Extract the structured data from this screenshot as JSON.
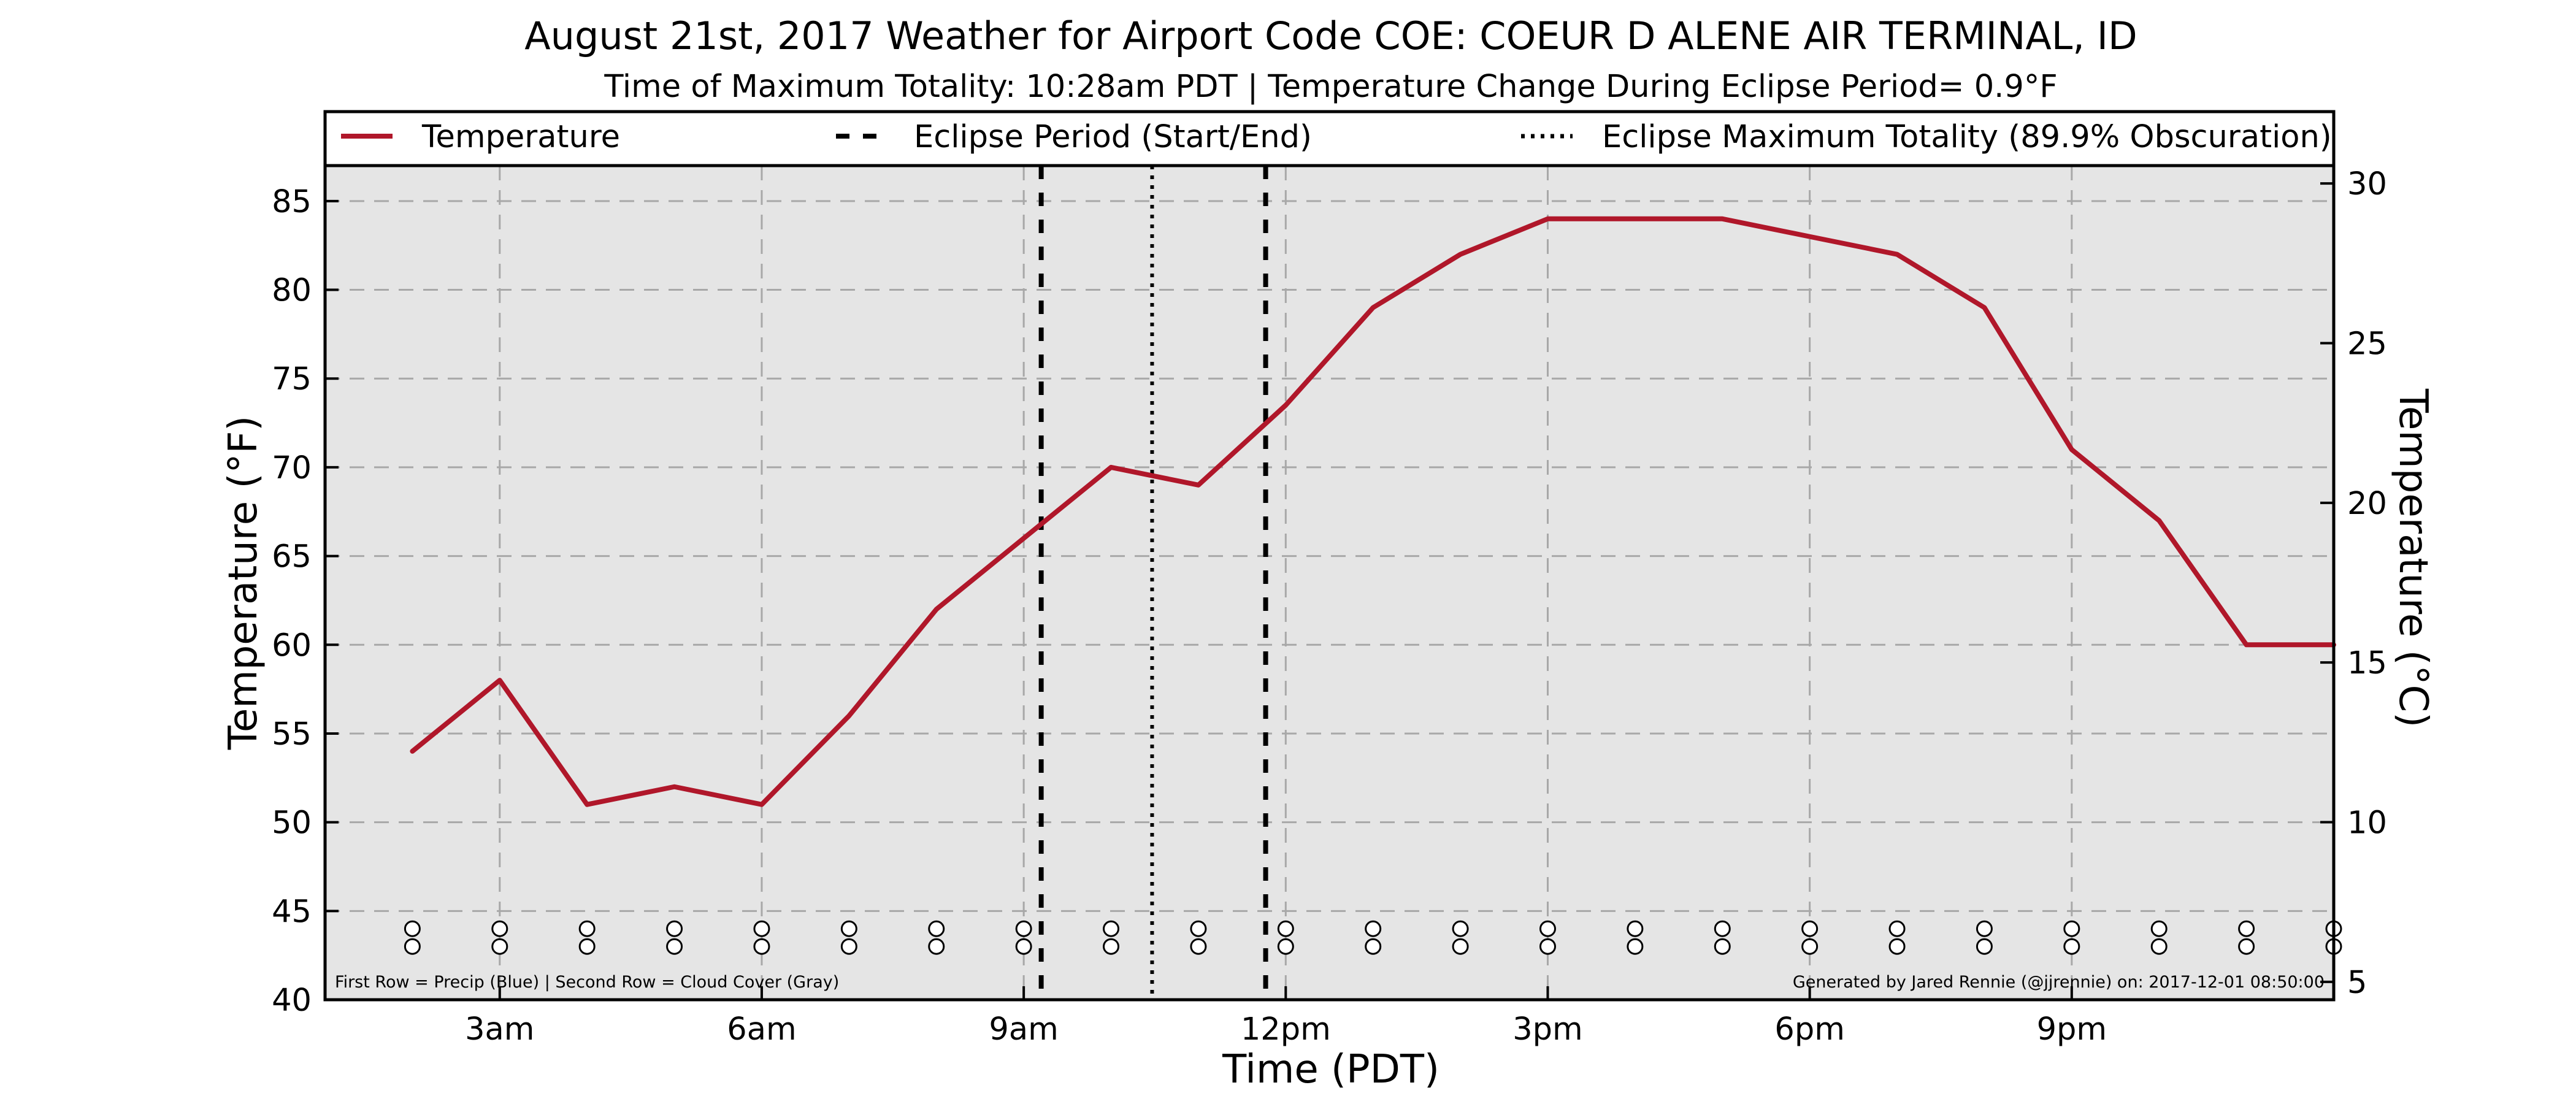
{
  "chart_data": {
    "type": "line",
    "title": "August 21st, 2017 Weather for Airport Code COE: COEUR D ALENE AIR TERMINAL, ID",
    "subtitle": "Time of Maximum Totality: 10:28am PDT | Temperature Change During Eclipse Period= 0.9°F",
    "xlabel": "Time (PDT)",
    "ylabel": "Temperature (°F)",
    "y2label": "Temperature (°C)",
    "xlim": [
      1,
      24
    ],
    "ylim": [
      40,
      87
    ],
    "y2lim": [
      4.44,
      30.56
    ],
    "grid": true,
    "xticks": [
      {
        "value": 3,
        "label": "3am"
      },
      {
        "value": 6,
        "label": "6am"
      },
      {
        "value": 9,
        "label": "9am"
      },
      {
        "value": 12,
        "label": "12pm"
      },
      {
        "value": 15,
        "label": "3pm"
      },
      {
        "value": 18,
        "label": "6pm"
      },
      {
        "value": 21,
        "label": "9pm"
      }
    ],
    "yticks": [
      40,
      45,
      50,
      55,
      60,
      65,
      70,
      75,
      80,
      85
    ],
    "y2ticks": [
      5,
      10,
      15,
      20,
      25,
      30
    ],
    "series": [
      {
        "name": "Temperature",
        "color": "#b0172a",
        "x": [
          2,
          3,
          4,
          5,
          6,
          7,
          8,
          9,
          10,
          11,
          12,
          13,
          14,
          15,
          16,
          17,
          18,
          19,
          20,
          21,
          22,
          23,
          24
        ],
        "values": [
          54,
          58,
          51,
          52,
          51,
          56,
          62,
          66,
          70,
          69,
          73.5,
          79,
          82,
          84,
          84,
          84,
          83,
          82,
          79,
          71,
          67,
          60,
          60
        ]
      }
    ],
    "eclipse_period": {
      "start": 9.2,
      "end": 11.77,
      "label": "Eclipse Period (Start/End)"
    },
    "eclipse_max": {
      "x": 10.47,
      "label": "Eclipse Maximum Totality (89.9% Obscuration)"
    },
    "marker_rows": {
      "x": [
        2,
        3,
        4,
        5,
        6,
        7,
        8,
        9,
        10,
        11,
        12,
        13,
        14,
        15,
        16,
        17,
        18,
        19,
        20,
        21,
        22,
        23,
        24
      ],
      "precip_y": 44,
      "cloud_y": 43
    },
    "legend": {
      "placement": "top",
      "entries": [
        {
          "label": "Temperature",
          "style": "solid",
          "color": "#b0172a"
        },
        {
          "label": "Eclipse Period (Start/End)",
          "style": "dashed",
          "color": "#000000"
        },
        {
          "label": "Eclipse Maximum Totality (89.9% Obscuration)",
          "style": "dotted",
          "color": "#000000"
        }
      ]
    },
    "footnote_left": "First Row = Precip (Blue) | Second Row = Cloud Cover (Gray)",
    "footnote_right": "Generated by Jared Rennie (@jjrennie) on: 2017-12-01 08:50:00"
  }
}
